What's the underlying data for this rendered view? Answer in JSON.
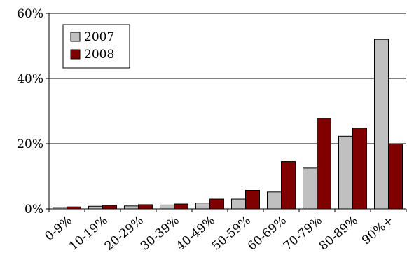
{
  "chart_data": {
    "type": "bar",
    "categories": [
      "0-9%",
      "10-19%",
      "20-29%",
      "30-39%",
      "40-49%",
      "50-59%",
      "60-69%",
      "70-79%",
      "80-89%",
      "90%+"
    ],
    "series": [
      {
        "name": "2007",
        "color": "#c0c0c0",
        "values": [
          0.5,
          0.8,
          0.9,
          1.2,
          1.8,
          3.0,
          5.2,
          12.5,
          22.3,
          52.0
        ]
      },
      {
        "name": "2008",
        "color": "#800000",
        "values": [
          0.6,
          1.1,
          1.3,
          1.5,
          3.0,
          5.7,
          14.5,
          27.8,
          24.8,
          20.0
        ]
      }
    ],
    "ylim": [
      0,
      60
    ],
    "yticks": [
      0,
      20,
      40,
      60
    ],
    "ytick_labels": [
      "0%",
      "20%",
      "40%",
      "60%"
    ],
    "grid": true,
    "legend": {
      "placement": "top-left"
    }
  }
}
